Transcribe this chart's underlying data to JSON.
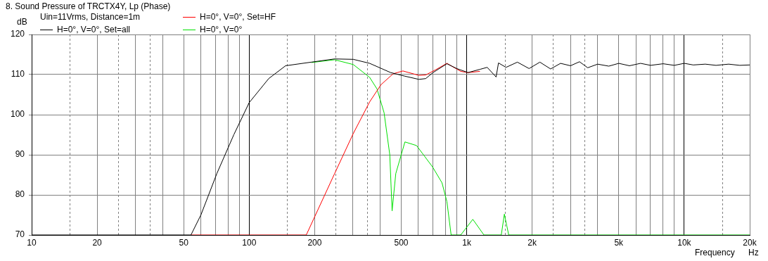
{
  "chart_data": {
    "type": "line",
    "title": "8. Sound Pressure of TRCTX4Y, Lp (Phase)",
    "xlabel": "Frequency",
    "ylabel": "dB",
    "annotations": [
      "Uin=11Vrms, Distance=1m",
      "Hz"
    ],
    "log": "x",
    "grid": true,
    "legend": "top left",
    "xlim": [
      10,
      20000
    ],
    "ylim": [
      70,
      120
    ],
    "yticks": [
      70,
      80,
      90,
      100,
      110,
      120
    ],
    "xticks": [
      10,
      {
        "value": 15,
        "label": null
      },
      20,
      {
        "value": 25,
        "label": null
      },
      {
        "value": 30,
        "label": null
      },
      {
        "value": 35,
        "label": null
      },
      {
        "value": 40,
        "label": null
      },
      50,
      {
        "value": 60,
        "label": null
      },
      {
        "value": 70,
        "label": null
      },
      {
        "value": 80,
        "label": null
      },
      {
        "value": 90,
        "label": null
      },
      100,
      {
        "value": 150,
        "label": null
      },
      200,
      {
        "value": 250,
        "label": null
      },
      {
        "value": 300,
        "label": null
      },
      {
        "value": 350,
        "label": null
      },
      {
        "value": 400,
        "label": null
      },
      500,
      {
        "value": 600,
        "label": null
      },
      {
        "value": 700,
        "label": null
      },
      {
        "value": 800,
        "label": null
      },
      {
        "value": 900,
        "label": null
      },
      {
        "value": 1000,
        "label": "1k"
      },
      {
        "value": 1500,
        "label": null
      },
      {
        "value": 2000,
        "label": "2k"
      },
      {
        "value": 2500,
        "label": null
      },
      {
        "value": 3000,
        "label": null
      },
      {
        "value": 3500,
        "label": null
      },
      {
        "value": 4000,
        "label": null
      },
      {
        "value": 5000,
        "label": "5k"
      },
      {
        "value": 6000,
        "label": null
      },
      {
        "value": 7000,
        "label": null
      },
      {
        "value": 8000,
        "label": null
      },
      {
        "value": 9000,
        "label": null
      },
      {
        "value": 10000,
        "label": "10k"
      },
      {
        "value": 15000,
        "label": null
      },
      {
        "value": 20000,
        "label": "20k"
      }
    ],
    "series": [
      {
        "name": "H=0°, V=0°, Set=all",
        "color": "#000000",
        "x": [
          10,
          54,
          60,
          71,
          85,
          100,
          123,
          147,
          193,
          247,
          301,
          358,
          447,
          520,
          603,
          648,
          700,
          811,
          900,
          1014,
          1150,
          1242,
          1365,
          1400,
          1516,
          1710,
          1935,
          2170,
          2430,
          2700,
          3000,
          3300,
          3600,
          4000,
          4500,
          5000,
          5600,
          6300,
          7000,
          8000,
          9000,
          10000,
          11000,
          12500,
          14000,
          16000,
          18000,
          20000
        ],
        "values": [
          70,
          70,
          75,
          85.3,
          95,
          103,
          109,
          112.2,
          113.1,
          113.9,
          113.8,
          112.8,
          110.5,
          109.6,
          108.8,
          109,
          110.5,
          112.7,
          111.5,
          110.5,
          111.3,
          111.8,
          109.4,
          112.9,
          111.8,
          113.1,
          111.5,
          113.1,
          111.4,
          112.8,
          112.2,
          113.2,
          111.7,
          112.6,
          112.1,
          112.8,
          112.2,
          112.8,
          112.3,
          112.7,
          112.3,
          112.8,
          112.4,
          112.6,
          112.3,
          112.6,
          112.3,
          112.4
        ]
      },
      {
        "name": "H=0°, V=0°, Set=HF",
        "color": "#ff0000",
        "x": [
          54,
          183,
          247,
          301,
          358,
          404,
          459,
          509,
          603,
          648,
          720,
          811,
          939,
          1014,
          1150
        ],
        "values": [
          70,
          70,
          85.3,
          95.3,
          103.2,
          107.5,
          110.2,
          110.9,
          109.8,
          109.9,
          111.2,
          112.8,
          110.8,
          110.5,
          110.8
        ]
      },
      {
        "name": "H=0°, V=0°",
        "color": "#00e000",
        "x": [
          193,
          247,
          301,
          358,
          387,
          417,
          443,
          454,
          472,
          520,
          588,
          696,
          770,
          811,
          848,
          939,
          1067,
          1200,
          1442,
          1490,
          1560,
          20000
        ],
        "values": [
          113.0,
          113.7,
          112.5,
          109.3,
          106.4,
          100.5,
          90,
          76,
          85.3,
          93.2,
          92.3,
          87,
          83,
          78.3,
          70,
          70,
          73.9,
          70,
          70,
          75.2,
          70,
          70
        ]
      }
    ]
  }
}
